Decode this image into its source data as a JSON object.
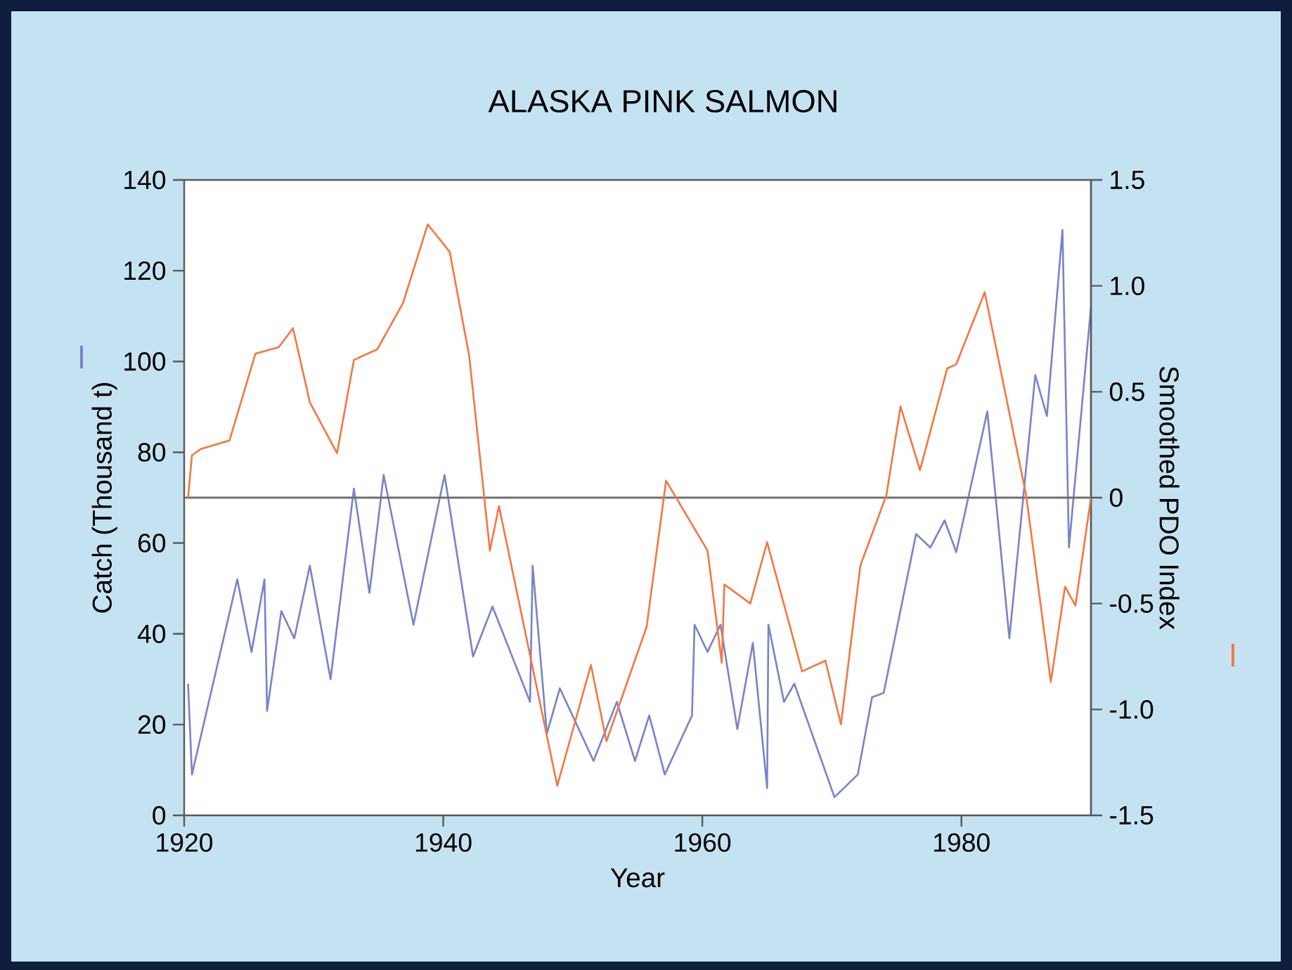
{
  "chart_data": {
    "type": "line",
    "title": "ALASKA PINK SALMON",
    "xlabel": "Year",
    "ylabel": "Catch (Thousand t)",
    "y2label": "Smoothed PDO Index",
    "xlim": [
      1920,
      1990
    ],
    "xticks": [
      1920,
      1940,
      1960,
      1980
    ],
    "ylim": [
      0,
      140
    ],
    "yticks": [
      0,
      20,
      40,
      60,
      80,
      100,
      120,
      140
    ],
    "y2lim": [
      -1.5,
      1.5
    ],
    "y2ticks": [
      -1.5,
      {
        "value": -1,
        "label": "-1.0"
      },
      -0.5,
      0,
      0.5,
      {
        "value": 1,
        "label": "1.0"
      },
      1.5
    ],
    "series": [
      {
        "color": "#7b84c8",
        "x": [
          1920.3,
          1920.6,
          1924.1,
          1925.2,
          1926.2,
          1926.4,
          1927.5,
          1928.5,
          1929.7,
          1931.3,
          1933.1,
          1934.3,
          1935.4,
          1937.7,
          1940.1,
          1942.3,
          1943.8,
          1946.7,
          1946.9,
          1948.0,
          1949.0,
          1951.6,
          1953.4,
          1954.8,
          1955.9,
          1957.1,
          1959.2,
          1959.4,
          1960.4,
          1961.4,
          1962.7,
          1963.9,
          1965.0,
          1965.1,
          1966.3,
          1967.1,
          1970.2,
          1972.0,
          1973.1,
          1974.0,
          1976.5,
          1977.6,
          1978.7,
          1979.6,
          1982.0,
          1983.7,
          1985.7,
          1986.6,
          1987.8,
          1988.3,
          1990
        ],
        "values": [
          29,
          9,
          52,
          36,
          52,
          23,
          45,
          39,
          55,
          30,
          72,
          49,
          75,
          42,
          75,
          35,
          46,
          25,
          55,
          18,
          28,
          12,
          25,
          12,
          22,
          9,
          22,
          42,
          36,
          42,
          19,
          38,
          6,
          42,
          25,
          29,
          4,
          9,
          26,
          27,
          62,
          59,
          65,
          58,
          89,
          39,
          97,
          88,
          129,
          59,
          112
        ]
      },
      {
        "color": "#f07a45",
        "axis": "y2",
        "x": [
          1920.3,
          1920.6,
          1921.3,
          1923.5,
          1925.5,
          1927.3,
          1928.4,
          1929.7,
          1931.8,
          1933.1,
          1934.9,
          1936.9,
          1938.8,
          1940.5,
          1942.0,
          1943.6,
          1944.3,
          1948.8,
          1951.4,
          1952.6,
          1955.7,
          1957.2,
          1960.4,
          1961.5,
          1961.7,
          1963.7,
          1965.0,
          1967.7,
          1969.5,
          1970.7,
          1972.2,
          1974.2,
          1975.3,
          1976.8,
          1978.9,
          1979.6,
          1981.8,
          1985.0,
          1986.9,
          1988.0,
          1988.8,
          1990
        ],
        "values": [
          0,
          0.2,
          0.23,
          0.27,
          0.68,
          0.71,
          0.8,
          0.45,
          0.21,
          0.65,
          0.7,
          0.92,
          1.29,
          1.16,
          0.67,
          -0.25,
          -0.04,
          -1.36,
          -0.79,
          -1.15,
          -0.61,
          0.08,
          -0.25,
          -0.78,
          -0.41,
          -0.5,
          -0.21,
          -0.82,
          -0.77,
          -1.07,
          -0.32,
          0.01,
          0.43,
          0.13,
          0.61,
          0.63,
          0.97,
          0.01,
          -0.87,
          -0.42,
          -0.51,
          0
        ]
      }
    ],
    "ref_lines": [
      {
        "axis": "y2",
        "value": 0,
        "color": "#707070"
      }
    ]
  }
}
